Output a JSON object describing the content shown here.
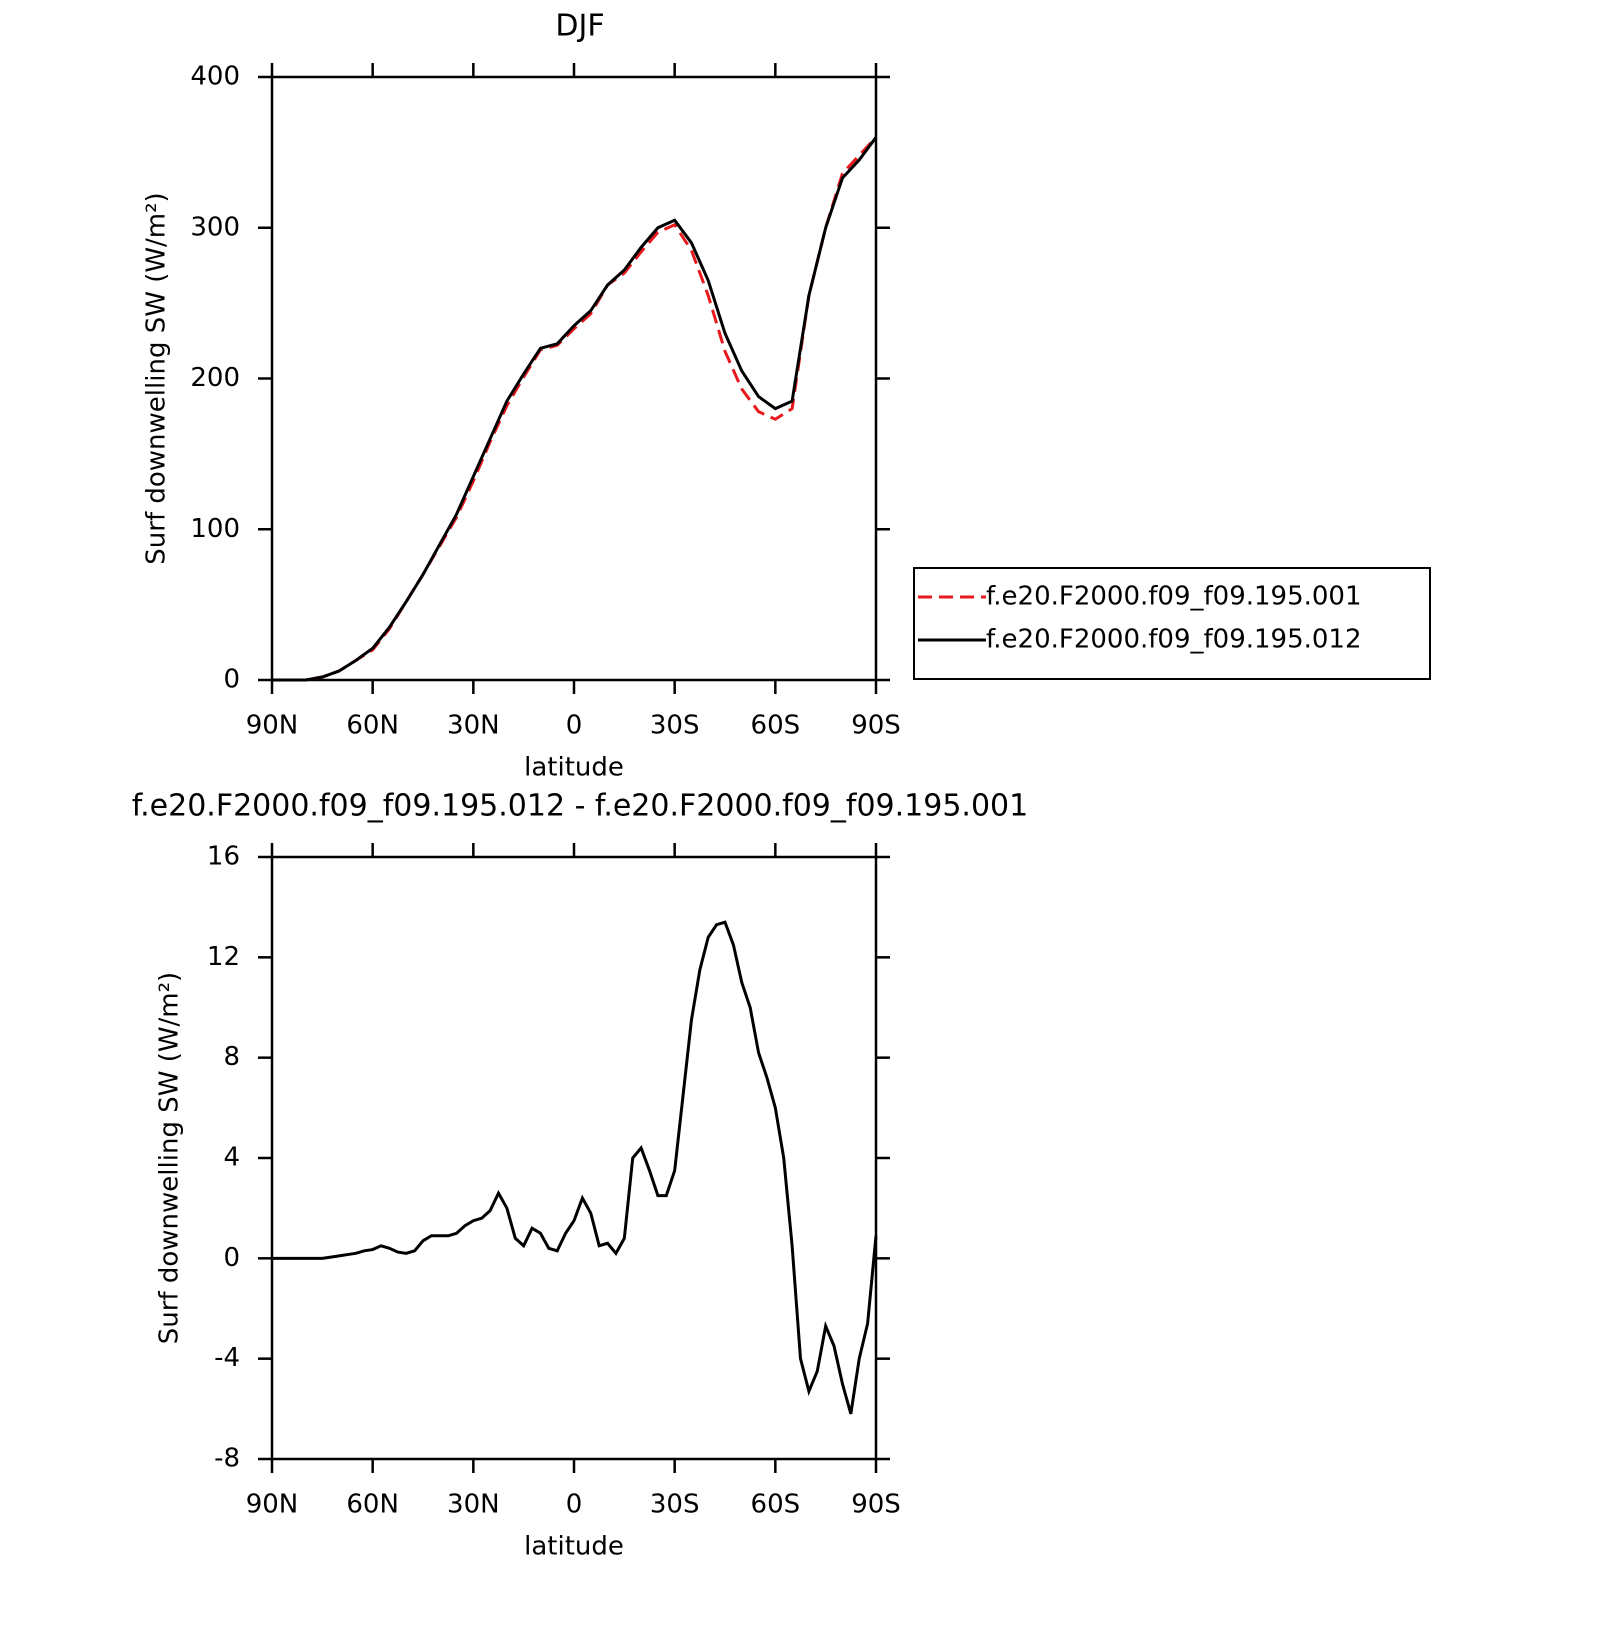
{
  "chart_data": [
    {
      "type": "line",
      "title": "DJF",
      "xlabel": "latitude",
      "ylabel": "Surf downwelling SW (W/m²)",
      "x": [
        90,
        85,
        80,
        75,
        70,
        65,
        60,
        55,
        50,
        45,
        40,
        35,
        30,
        25,
        20,
        15,
        10,
        5,
        0,
        -5,
        -10,
        -15,
        -20,
        -25,
        -30,
        -35,
        -40,
        -45,
        -50,
        -55,
        -60,
        -65,
        -70,
        -75,
        -80,
        -85,
        -90
      ],
      "series": [
        {
          "name": "f.e20.F2000.f09_f09.195.001",
          "color": "#e8191d",
          "linestyle": "dashed",
          "values": [
            0,
            0,
            0,
            2,
            6,
            13,
            20,
            34,
            52,
            70,
            89,
            108,
            132,
            158,
            182,
            201,
            219,
            222,
            233,
            243,
            262,
            270,
            284,
            297,
            302,
            285,
            255,
            218,
            193,
            178,
            173,
            180,
            255,
            300,
            336,
            348,
            360
          ]
        },
        {
          "name": "f.e20.F2000.f09_f09.195.012",
          "color": "#000000",
          "linestyle": "solid",
          "values": [
            0,
            0,
            0,
            2,
            6,
            13,
            21,
            35,
            52,
            70,
            90,
            110,
            135,
            160,
            185,
            203,
            220,
            223,
            235,
            245,
            262,
            272,
            287,
            300,
            305,
            290,
            265,
            230,
            205,
            188,
            180,
            185,
            255,
            300,
            333,
            345,
            360
          ]
        }
      ],
      "xlim": [
        90,
        -90
      ],
      "xticks": [
        {
          "value": 90,
          "label": "90N"
        },
        {
          "value": 60,
          "label": "60N"
        },
        {
          "value": 30,
          "label": "30N"
        },
        0,
        {
          "value": -30,
          "label": "30S"
        },
        {
          "value": -60,
          "label": "60S"
        },
        {
          "value": -90,
          "label": "90S"
        }
      ],
      "ylim": [
        0,
        400
      ],
      "yticks": [
        0,
        100,
        200,
        300,
        400
      ],
      "legend": "right"
    },
    {
      "type": "line",
      "title": "f.e20.F2000.f09_f09.195.012 - f.e20.F2000.f09_f09.195.001",
      "xlabel": "latitude",
      "ylabel": "Surf downwelling SW (W/m²)",
      "x": [
        90,
        87.5,
        85,
        82.5,
        80,
        77.5,
        75,
        72.5,
        70,
        67.5,
        65,
        62.5,
        60,
        57.5,
        55,
        52.5,
        50,
        47.5,
        45,
        42.5,
        40,
        37.5,
        35,
        32.5,
        30,
        27.5,
        25,
        22.5,
        20,
        17.5,
        15,
        12.5,
        10,
        7.5,
        5,
        2.5,
        0,
        -2.5,
        -5,
        -7.5,
        -10,
        -12.5,
        -15,
        -17.5,
        -20,
        -22.5,
        -25,
        -27.5,
        -30,
        -32.5,
        -35,
        -37.5,
        -40,
        -42.5,
        -45,
        -47.5,
        -50,
        -52.5,
        -55,
        -57.5,
        -60,
        -62.5,
        -65,
        -67.5,
        -70,
        -72.5,
        -75,
        -77.5,
        -80,
        -82.5,
        -85,
        -87.5,
        -90
      ],
      "series": [
        {
          "color": "#000000",
          "linestyle": "solid",
          "values": [
            0,
            0,
            0,
            0,
            0,
            0,
            0,
            0.05,
            0.1,
            0.15,
            0.2,
            0.3,
            0.35,
            0.5,
            0.4,
            0.25,
            0.2,
            0.3,
            0.7,
            0.9,
            0.9,
            0.9,
            1.0,
            1.3,
            1.5,
            1.6,
            1.9,
            2.6,
            2.0,
            0.8,
            0.5,
            1.2,
            1.0,
            0.4,
            0.3,
            1.0,
            1.5,
            2.4,
            1.8,
            0.5,
            0.6,
            0.2,
            0.8,
            4.0,
            4.4,
            3.5,
            2.5,
            2.5,
            3.5,
            6.5,
            9.5,
            11.5,
            12.8,
            13.3,
            13.4,
            12.5,
            11.0,
            10.0,
            8.2,
            7.2,
            6.0,
            4.0,
            0.5,
            -4.0,
            -5.3,
            -4.5,
            -2.7,
            -3.5,
            -5.0,
            -6.2,
            -4.0,
            -2.6,
            0.9
          ]
        }
      ],
      "xlim": [
        90,
        -90
      ],
      "xticks": [
        {
          "value": 90,
          "label": "90N"
        },
        {
          "value": 60,
          "label": "60N"
        },
        {
          "value": 30,
          "label": "30N"
        },
        0,
        {
          "value": -30,
          "label": "30S"
        },
        {
          "value": -60,
          "label": "60S"
        },
        {
          "value": -90,
          "label": "90S"
        }
      ],
      "ylim": [
        -8,
        16
      ],
      "yticks": [
        -8,
        -4,
        0,
        4,
        8,
        12,
        16
      ]
    }
  ]
}
